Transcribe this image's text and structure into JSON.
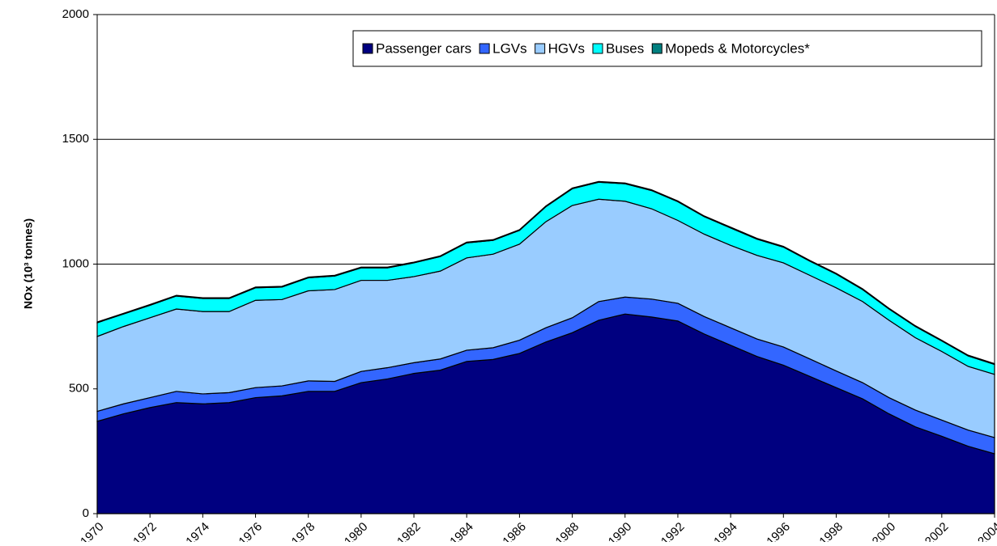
{
  "chart_data": {
    "type": "stacked-area",
    "y_label": "NOx (10³ tonnes)",
    "x": [
      1970,
      1971,
      1972,
      1973,
      1974,
      1975,
      1976,
      1977,
      1978,
      1979,
      1980,
      1981,
      1982,
      1983,
      1984,
      1985,
      1986,
      1987,
      1988,
      1989,
      1990,
      1991,
      1992,
      1993,
      1994,
      1995,
      1996,
      1997,
      1998,
      1999,
      2000,
      2001,
      2002,
      2003,
      2004
    ],
    "xlim": [
      1970,
      2004
    ],
    "xticks": [
      1970,
      1972,
      1974,
      1976,
      1978,
      1980,
      1982,
      1984,
      1986,
      1988,
      1990,
      1992,
      1994,
      1996,
      1998,
      2000,
      2002,
      2004
    ],
    "ylim": [
      0,
      2000
    ],
    "yticks": [
      0,
      500,
      1000,
      1500,
      2000
    ],
    "grid": true,
    "legend": "top-right",
    "series": [
      {
        "name": "Passenger cars",
        "color": "#000080",
        "values": [
          370,
          400,
          425,
          445,
          440,
          445,
          465,
          472,
          490,
          490,
          525,
          540,
          562,
          575,
          610,
          618,
          642,
          688,
          725,
          775,
          800,
          788,
          772,
          720,
          675,
          630,
          595,
          550,
          505,
          460,
          400,
          348,
          310,
          270,
          240
        ]
      },
      {
        "name": "LGVs",
        "color": "#3366ff",
        "values": [
          40,
          40,
          40,
          45,
          40,
          40,
          40,
          40,
          42,
          40,
          45,
          45,
          43,
          45,
          45,
          47,
          53,
          57,
          60,
          75,
          68,
          72,
          71,
          70,
          70,
          70,
          73,
          70,
          67,
          65,
          65,
          67,
          65,
          65,
          65
        ]
      },
      {
        "name": "HGVs",
        "color": "#99ccff",
        "values": [
          300,
          310,
          320,
          330,
          330,
          325,
          350,
          346,
          361,
          368,
          365,
          350,
          345,
          352,
          370,
          375,
          385,
          425,
          450,
          410,
          384,
          362,
          332,
          330,
          330,
          335,
          337,
          335,
          333,
          325,
          310,
          290,
          275,
          255,
          253
        ]
      },
      {
        "name": "Buses",
        "color": "#00ffff",
        "values": [
          55,
          50,
          50,
          52,
          52,
          52,
          50,
          50,
          52,
          54,
          50,
          50,
          55,
          58,
          60,
          55,
          55,
          60,
          67,
          68,
          70,
          73,
          75,
          70,
          70,
          65,
          63,
          57,
          55,
          48,
          45,
          45,
          42,
          42,
          40
        ]
      },
      {
        "name": "Mopeds & Motorcycles*",
        "color": "#008080",
        "values": [
          3,
          3,
          3,
          3,
          3,
          3,
          3,
          3,
          3,
          3,
          3,
          3,
          3,
          3,
          3,
          3,
          3,
          3,
          3,
          3,
          3,
          3,
          3,
          3,
          3,
          3,
          3,
          3,
          3,
          3,
          3,
          3,
          3,
          3,
          3
        ]
      }
    ]
  }
}
